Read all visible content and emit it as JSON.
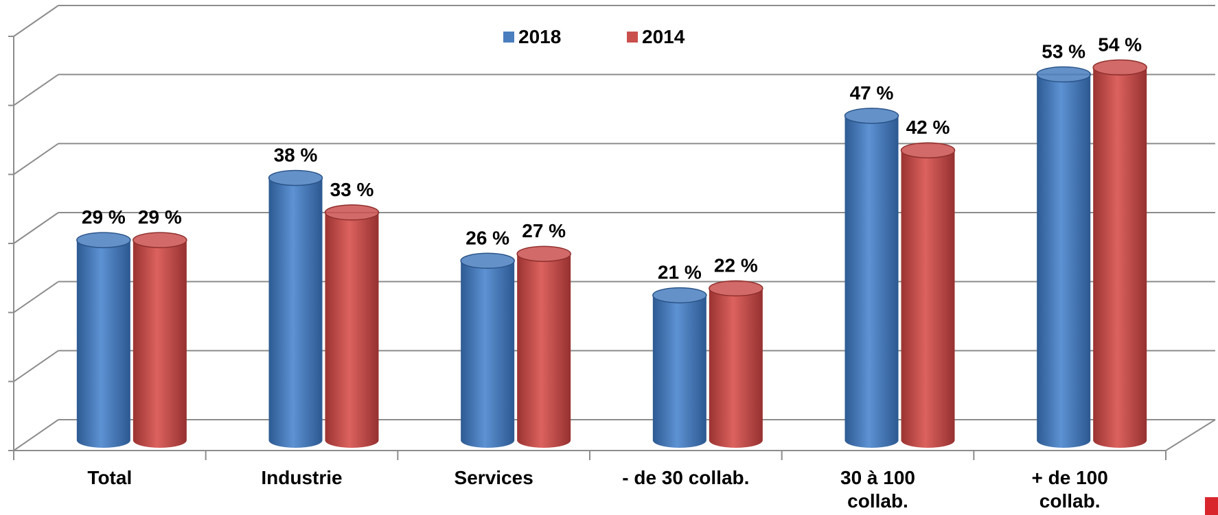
{
  "chart_data": {
    "type": "bar3d",
    "categories": [
      "Total",
      "Industrie",
      "Services",
      "- de 30 collab.",
      "30 à 100 collab.",
      "+ de 100 collab."
    ],
    "series": [
      {
        "name": "2018",
        "color": "#4a7ebf",
        "values": [
          29,
          38,
          26,
          21,
          47,
          53
        ],
        "value_labels": [
          "29 %",
          "38 %",
          "26 %",
          "21 %",
          "47 %",
          "53 %"
        ]
      },
      {
        "name": "2014",
        "color": "#c9504d",
        "values": [
          29,
          33,
          27,
          22,
          42,
          54
        ],
        "value_labels": [
          "29 %",
          "33 %",
          "27 %",
          "22 %",
          "42 %",
          "54 %"
        ]
      }
    ],
    "ylim": [
      0,
      60
    ],
    "yticks": [
      0,
      10,
      20,
      30,
      40,
      50,
      60
    ],
    "grid": true
  }
}
